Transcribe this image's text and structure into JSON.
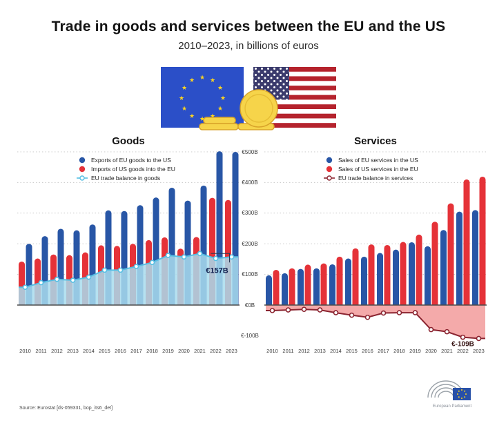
{
  "header": {
    "title": "Trade in goods and services between the EU and the US",
    "subtitle": "2010–2023, in billions of euros"
  },
  "footer": {
    "source": "Source: Eurostat [ds-059331, bop_its6_det]",
    "logo_caption": "European Parliament"
  },
  "colors": {
    "bar_blue": "#2856a6",
    "bar_red": "#e53238",
    "goods_line": "#56bfe3",
    "goods_fill": "#a9dced",
    "services_line": "#8b2430",
    "services_fill": "#f29b9b",
    "grid": "#c9c9c9",
    "axis_line": "#4a4a4a",
    "annotation_goods": "#0f1e4e",
    "annotation_services": "#331111"
  },
  "axis": {
    "years": [
      "2010",
      "2011",
      "2012",
      "2013",
      "2014",
      "2015",
      "2016",
      "2017",
      "2018",
      "2019",
      "2020",
      "2021",
      "2022",
      "2023"
    ],
    "y_ticks": [
      {
        "label": "€500B",
        "value": 500
      },
      {
        "label": "€400B",
        "value": 400
      },
      {
        "label": "€300B",
        "value": 300
      },
      {
        "label": "€200B",
        "value": 200
      },
      {
        "label": "€100B",
        "value": 100
      },
      {
        "label": "€0B",
        "value": 0
      },
      {
        "label": "€-100B",
        "value": -100
      }
    ]
  },
  "chart_data": [
    {
      "type": "bar",
      "title": "Goods",
      "unit": "billions of euros",
      "ylim": [
        0,
        510
      ],
      "grid": "dotted horizontal",
      "legend_position": "top-left inside",
      "categories": [
        "2010",
        "2011",
        "2012",
        "2013",
        "2014",
        "2015",
        "2016",
        "2017",
        "2018",
        "2019",
        "2020",
        "2021",
        "2022",
        "2023"
      ],
      "series": [
        {
          "name": "Exports of EU goods to the US",
          "kind": "bar",
          "color_key": "bar_blue",
          "slot": 1,
          "values": [
            200,
            225,
            249,
            244,
            263,
            309,
            307,
            326,
            351,
            383,
            341,
            390,
            502,
            500
          ]
        },
        {
          "name": "Imports of US goods into the EU",
          "kind": "bar",
          "color_key": "bar_red",
          "slot": 0,
          "values": [
            142,
            152,
            165,
            163,
            172,
            195,
            193,
            200,
            212,
            221,
            184,
            222,
            350,
            343
          ]
        },
        {
          "name": "EU trade balance in goods",
          "kind": "balance",
          "color_key": "goods_line",
          "fill_key": "goods_fill",
          "values": [
            58,
            73,
            84,
            81,
            91,
            114,
            114,
            126,
            139,
            162,
            157,
            168,
            152,
            157
          ]
        }
      ],
      "annotation": {
        "text": "€157B",
        "year": "2023",
        "value": 157
      }
    },
    {
      "type": "bar",
      "title": "Services",
      "unit": "billions of euros",
      "ylim": [
        -120,
        510
      ],
      "grid": "dotted horizontal",
      "legend_position": "top-left inside",
      "categories": [
        "2010",
        "2011",
        "2012",
        "2013",
        "2014",
        "2015",
        "2016",
        "2017",
        "2018",
        "2019",
        "2020",
        "2021",
        "2022",
        "2023"
      ],
      "series": [
        {
          "name": "Sales of EU services in the US",
          "kind": "bar",
          "color_key": "bar_blue",
          "slot": 0,
          "values": [
            97,
            104,
            118,
            120,
            133,
            152,
            158,
            170,
            181,
            205,
            192,
            245,
            305,
            310
          ]
        },
        {
          "name": "Sales of US services in the EU",
          "kind": "bar",
          "color_key": "bar_red",
          "slot": 1,
          "values": [
            115,
            120,
            132,
            136,
            158,
            185,
            198,
            196,
            206,
            230,
            272,
            332,
            410,
            419
          ]
        },
        {
          "name": "EU trade balance in services",
          "kind": "balance",
          "color_key": "services_line",
          "fill_key": "services_fill",
          "values": [
            -18,
            -16,
            -14,
            -16,
            -25,
            -33,
            -40,
            -26,
            -25,
            -25,
            -80,
            -87,
            -105,
            -109
          ]
        }
      ],
      "annotation": {
        "text": "€-109B",
        "year": "2023",
        "value": -109
      }
    }
  ]
}
